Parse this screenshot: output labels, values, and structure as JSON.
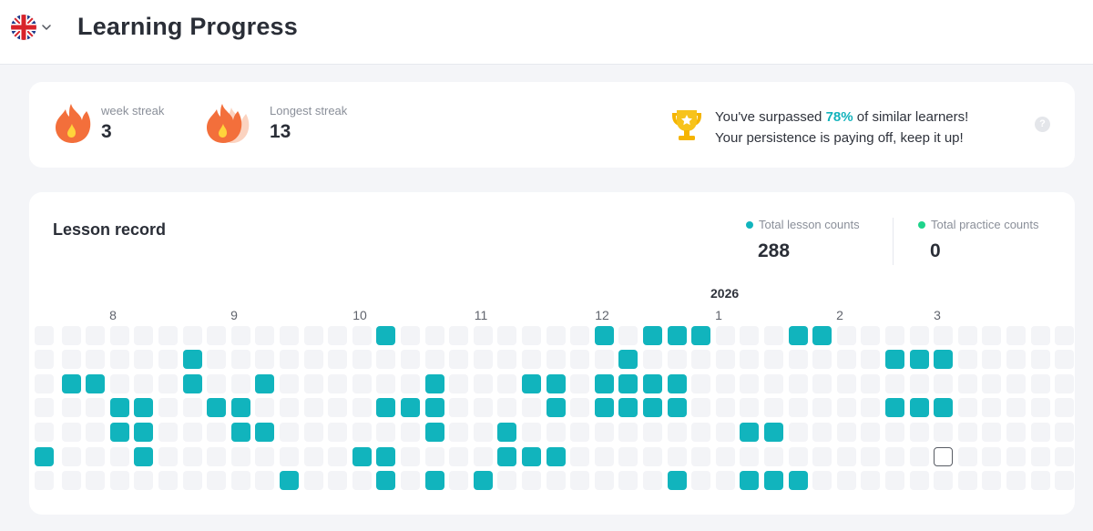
{
  "header": {
    "title": "Learning Progress",
    "language_icon": "uk-flag-icon"
  },
  "streaks": {
    "week": {
      "label": "week streak",
      "value": "3"
    },
    "longest": {
      "label": "Longest streak",
      "value": "13"
    }
  },
  "achievement": {
    "text_before": "You've surpassed ",
    "percent": "78%",
    "text_after": " of similar learners!",
    "line2": "Your persistence is paying off, keep it up!",
    "icon": "trophy-icon",
    "help_glyph": "?"
  },
  "lesson_record": {
    "title": "Lesson record",
    "total_lessons": {
      "label": "Total lesson counts",
      "value": "288"
    },
    "total_practice": {
      "label": "Total practice counts",
      "value": "0"
    },
    "year_label": "2026",
    "month_labels": [
      "8",
      "9",
      "10",
      "11",
      "12",
      "1",
      "2",
      "3"
    ],
    "calendar": {
      "rows": 7,
      "cols": 42,
      "active": [
        [
          0,
          14
        ],
        [
          0,
          23
        ],
        [
          0,
          25
        ],
        [
          0,
          26
        ],
        [
          0,
          27
        ],
        [
          0,
          31
        ],
        [
          0,
          32
        ],
        [
          1,
          6
        ],
        [
          1,
          24
        ],
        [
          1,
          35
        ],
        [
          1,
          36
        ],
        [
          1,
          37
        ],
        [
          2,
          1
        ],
        [
          2,
          2
        ],
        [
          2,
          6
        ],
        [
          2,
          9
        ],
        [
          2,
          16
        ],
        [
          2,
          20
        ],
        [
          2,
          21
        ],
        [
          2,
          23
        ],
        [
          2,
          24
        ],
        [
          2,
          25
        ],
        [
          2,
          26
        ],
        [
          3,
          3
        ],
        [
          3,
          4
        ],
        [
          3,
          7
        ],
        [
          3,
          8
        ],
        [
          3,
          14
        ],
        [
          3,
          15
        ],
        [
          3,
          16
        ],
        [
          3,
          21
        ],
        [
          3,
          23
        ],
        [
          3,
          24
        ],
        [
          3,
          25
        ],
        [
          3,
          26
        ],
        [
          3,
          35
        ],
        [
          3,
          36
        ],
        [
          3,
          37
        ],
        [
          4,
          3
        ],
        [
          4,
          4
        ],
        [
          4,
          8
        ],
        [
          4,
          9
        ],
        [
          4,
          16
        ],
        [
          4,
          19
        ],
        [
          4,
          29
        ],
        [
          4,
          30
        ],
        [
          5,
          4
        ],
        [
          5,
          13
        ],
        [
          5,
          14
        ],
        [
          5,
          19
        ],
        [
          5,
          20
        ],
        [
          5,
          21
        ],
        [
          6,
          10
        ],
        [
          6,
          14
        ],
        [
          6,
          16
        ],
        [
          6,
          18
        ],
        [
          6,
          26
        ],
        [
          6,
          29
        ],
        [
          6,
          30
        ],
        [
          6,
          31
        ]
      ],
      "partial_active": [
        [
          5,
          0
        ]
      ],
      "today": [
        5,
        37
      ]
    }
  },
  "colors": {
    "accent": "#11b4bd",
    "lesson_dot": "#11b4bd",
    "practice_dot": "#1fd38b",
    "empty_cell": "#f3f4f7"
  }
}
